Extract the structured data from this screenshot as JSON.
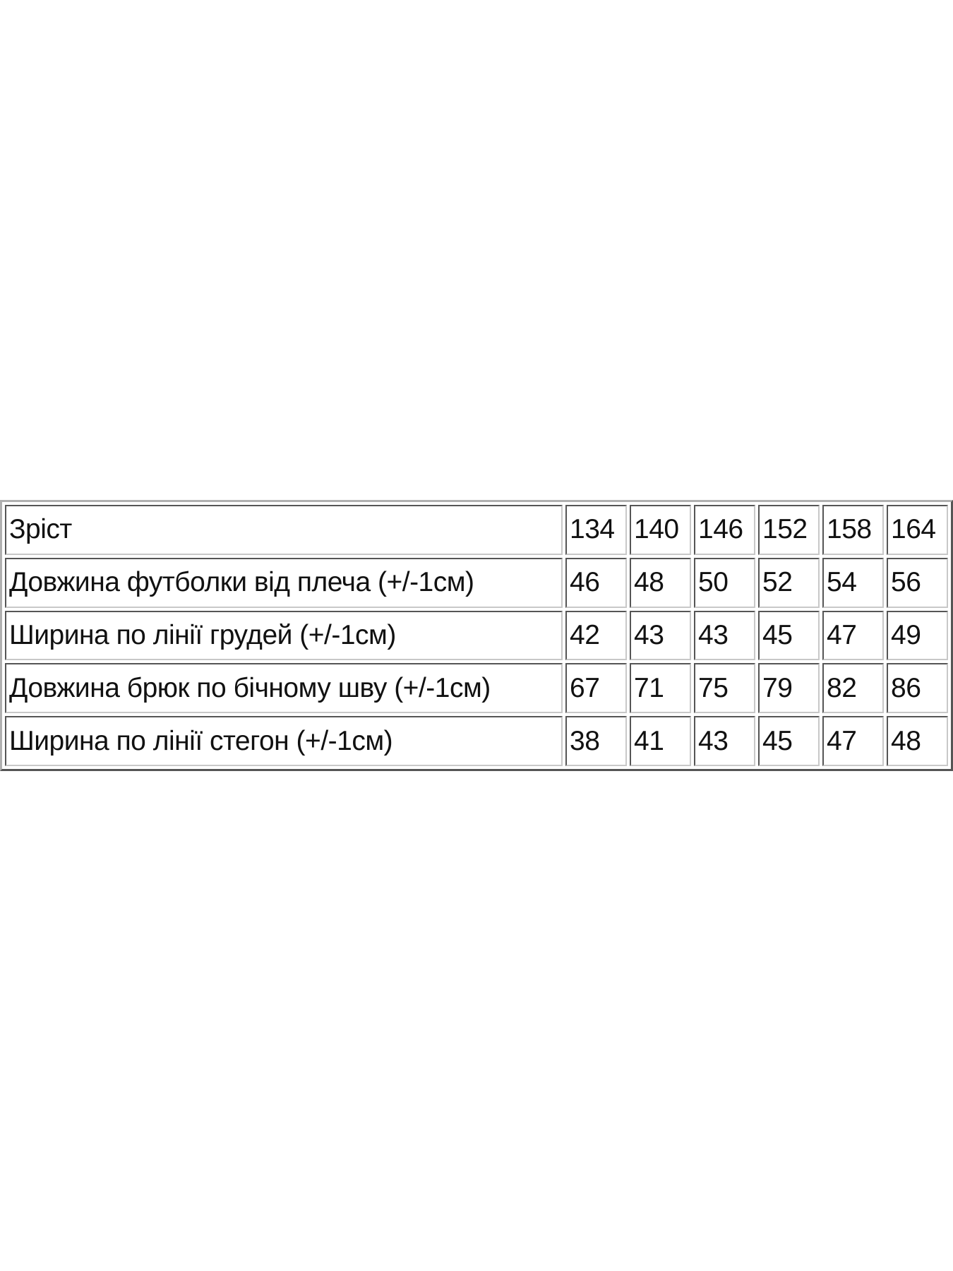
{
  "table": {
    "header": {
      "label": "Зріст",
      "values": [
        "134",
        "140",
        "146",
        "152",
        "158",
        "164"
      ]
    },
    "rows": [
      {
        "label": "Довжина футболки від плеча (+/-1см)",
        "values": [
          "46",
          "48",
          "50",
          "52",
          "54",
          "56"
        ]
      },
      {
        "label": "Ширина по лінії грудей (+/-1см)",
        "values": [
          "42",
          "43",
          "43",
          "45",
          "47",
          "49"
        ]
      },
      {
        "label": "Довжина брюк по бічному шву (+/-1см)",
        "values": [
          "67",
          "71",
          "75",
          "79",
          "82",
          "86"
        ]
      },
      {
        "label": "Ширина по лінії стегон (+/-1см)",
        "values": [
          "38",
          "41",
          "43",
          "45",
          "47",
          "48"
        ]
      }
    ]
  }
}
